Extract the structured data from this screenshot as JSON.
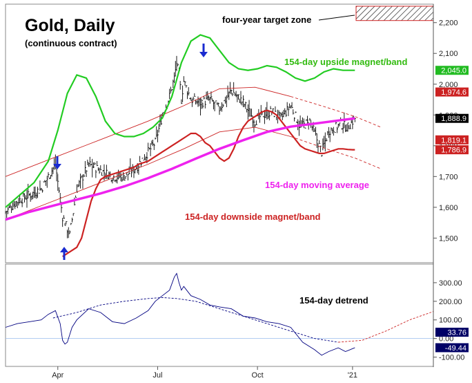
{
  "chart_data": [
    {
      "type": "line",
      "title": "Gold, Daily",
      "subtitle": "(continuous contract)",
      "ylim": [
        1420,
        2260
      ],
      "y_ticks": [
        1500,
        1600,
        1700,
        1800,
        1900,
        2000,
        2100,
        2200
      ],
      "y_tick_labels": [
        "1,500",
        "1,600",
        "1,700",
        "1,800",
        "1,900",
        "2,000",
        "2,100",
        "2,200"
      ],
      "x_tick_labels": [
        "Apr",
        "Jul",
        "Oct",
        "'21"
      ],
      "x_tick_index": [
        22,
        64,
        106,
        146
      ],
      "x_range": [
        0,
        180
      ],
      "annotations": {
        "target_zone": "four-year target zone",
        "upside": "154-day upside magnet/band",
        "moving_average": "154-day moving average",
        "downside": "154-day downside magnet/band"
      },
      "price_labels": [
        {
          "text": "2,045.0",
          "value": 2045.0,
          "color": "#22bb22",
          "text_color": "#ffffff"
        },
        {
          "text": "1,974.6",
          "value": 1974.6,
          "color": "#cc2222",
          "text_color": "#ffffff"
        },
        {
          "text": "1,888.9",
          "value": 1888.9,
          "color": "#000000",
          "text_color": "#ffffff"
        },
        {
          "text": "1,819.1",
          "value": 1819.1,
          "color": "#cc2222",
          "text_color": "#ffffff"
        },
        {
          "text": "1,786.9",
          "value": 1786.9,
          "color": "#cc2222",
          "text_color": "#ffffff"
        }
      ],
      "series": [
        {
          "name": "Gold close",
          "color": "#000000",
          "x": [
            0,
            5,
            10,
            15,
            18,
            21,
            24,
            27,
            30,
            35,
            40,
            45,
            50,
            55,
            60,
            63,
            66,
            69,
            71,
            72,
            73,
            74,
            75,
            78,
            82,
            86,
            90,
            95,
            100,
            105,
            108,
            112,
            116,
            120,
            124,
            128,
            131,
            133,
            136,
            139,
            141,
            144,
            147
          ],
          "values": [
            1585,
            1620,
            1640,
            1660,
            1700,
            1740,
            1570,
            1510,
            1660,
            1740,
            1720,
            1700,
            1700,
            1730,
            1780,
            1810,
            1900,
            1960,
            2020,
            2070,
            2030,
            1950,
            2010,
            1950,
            1940,
            1950,
            1920,
            1980,
            1940,
            1880,
            1900,
            1910,
            1890,
            1930,
            1860,
            1880,
            1820,
            1780,
            1850,
            1860,
            1870,
            1860,
            1888.9
          ]
        },
        {
          "name": "154-day moving average",
          "color": "#ee22ee",
          "x": [
            0,
            10,
            20,
            30,
            40,
            50,
            60,
            70,
            80,
            90,
            100,
            110,
            120,
            130,
            140,
            147
          ],
          "values": [
            1560,
            1585,
            1605,
            1625,
            1645,
            1668,
            1695,
            1725,
            1758,
            1790,
            1818,
            1845,
            1862,
            1872,
            1882,
            1888.9
          ]
        },
        {
          "name": "154-day upside magnet/band",
          "color": "#22cc22",
          "x": [
            0,
            6,
            12,
            18,
            22,
            26,
            30,
            34,
            38,
            42,
            46,
            50,
            54,
            58,
            62,
            66,
            70,
            74,
            78,
            82,
            86,
            90,
            94,
            98,
            102,
            106,
            110,
            114,
            118,
            122,
            126,
            130,
            134,
            138,
            142,
            147
          ],
          "values": [
            1600,
            1640,
            1680,
            1750,
            1850,
            1970,
            2030,
            2020,
            1960,
            1880,
            1840,
            1830,
            1830,
            1840,
            1860,
            1890,
            1960,
            2070,
            2140,
            2160,
            2150,
            2110,
            2070,
            2050,
            2045,
            2050,
            2060,
            2055,
            2040,
            2020,
            2010,
            2020,
            2040,
            2050,
            2045,
            2045
          ]
        },
        {
          "name": "154-day downside magnet/band",
          "color": "#cc2222",
          "x": [
            24,
            26,
            28,
            30,
            32,
            34,
            36,
            38,
            40,
            42,
            44,
            46,
            48,
            50,
            52,
            54,
            56,
            58,
            60,
            62,
            64,
            66,
            68,
            70,
            72,
            74,
            76,
            78,
            80,
            82,
            84,
            86,
            88,
            90,
            92,
            94,
            96,
            98,
            100,
            102,
            104,
            106,
            108,
            110,
            112,
            114,
            116,
            118,
            120,
            122,
            124,
            126,
            128,
            130,
            132,
            134,
            136,
            138,
            140,
            142,
            144,
            146,
            147
          ],
          "values": [
            1440,
            1450,
            1460,
            1470,
            1500,
            1560,
            1620,
            1660,
            1690,
            1700,
            1705,
            1710,
            1715,
            1720,
            1725,
            1730,
            1740,
            1745,
            1750,
            1760,
            1770,
            1780,
            1790,
            1800,
            1810,
            1820,
            1830,
            1840,
            1840,
            1830,
            1810,
            1800,
            1780,
            1760,
            1750,
            1760,
            1790,
            1830,
            1860,
            1880,
            1890,
            1900,
            1910,
            1915,
            1910,
            1900,
            1880,
            1860,
            1840,
            1820,
            1800,
            1790,
            1785,
            1780,
            1775,
            1775,
            1780,
            1785,
            1790,
            1790,
            1788,
            1787,
            1786.9
          ]
        },
        {
          "name": "Upper channel",
          "color": "#cc2222",
          "x": [
            0,
            20,
            40,
            60,
            75,
            90,
            105,
            120,
            135,
            147,
            158
          ],
          "values": [
            1700,
            1760,
            1820,
            1880,
            1930,
            1985,
            1990,
            1960,
            1925,
            1895,
            1860
          ]
        },
        {
          "name": "Lower channel",
          "color": "#cc2222",
          "x": [
            0,
            20,
            40,
            60,
            75,
            90,
            105,
            120,
            135,
            147,
            158
          ],
          "values": [
            1560,
            1620,
            1680,
            1740,
            1790,
            1845,
            1860,
            1830,
            1790,
            1760,
            1725
          ]
        }
      ]
    },
    {
      "type": "line",
      "title": "154-day detrend",
      "ylim": [
        -150,
        400
      ],
      "y_ticks": [
        -100,
        0,
        100,
        200,
        300
      ],
      "y_tick_labels": [
        "-100.00",
        "0.00",
        "100.00",
        "200.00",
        "300.00"
      ],
      "value_labels": [
        {
          "text": "33.76",
          "value": 33.76,
          "color": "#000066",
          "text_color": "#ffffff"
        },
        {
          "text": "-49.44",
          "value": -49.44,
          "color": "#000066",
          "text_color": "#ffffff"
        }
      ],
      "series": [
        {
          "name": "detrend",
          "color": "#000080",
          "x": [
            0,
            5,
            10,
            15,
            18,
            21,
            23,
            24,
            25,
            26,
            27,
            28,
            30,
            35,
            40,
            45,
            50,
            55,
            60,
            63,
            66,
            69,
            71,
            72,
            73,
            74,
            75,
            78,
            82,
            86,
            90,
            95,
            100,
            105,
            110,
            115,
            120,
            125,
            130,
            133,
            136,
            140,
            143,
            145,
            147
          ],
          "values": [
            60,
            80,
            90,
            100,
            130,
            150,
            80,
            -10,
            -30,
            -20,
            20,
            60,
            100,
            160,
            140,
            90,
            80,
            110,
            150,
            200,
            230,
            260,
            330,
            350,
            300,
            260,
            280,
            230,
            210,
            180,
            170,
            160,
            120,
            110,
            90,
            80,
            60,
            -20,
            -60,
            -90,
            -70,
            -50,
            -70,
            -60,
            -49.44
          ]
        },
        {
          "name": "cycle projection",
          "color": "#000080",
          "dashed": true,
          "x": [
            20,
            30,
            40,
            50,
            60,
            66,
            72,
            80,
            90,
            100,
            110,
            120,
            130,
            140,
            150,
            160,
            170,
            180
          ],
          "values": [
            110,
            140,
            180,
            200,
            215,
            220,
            215,
            200,
            160,
            120,
            80,
            40,
            0,
            -20,
            -10,
            40,
            100,
            145
          ]
        }
      ]
    }
  ]
}
